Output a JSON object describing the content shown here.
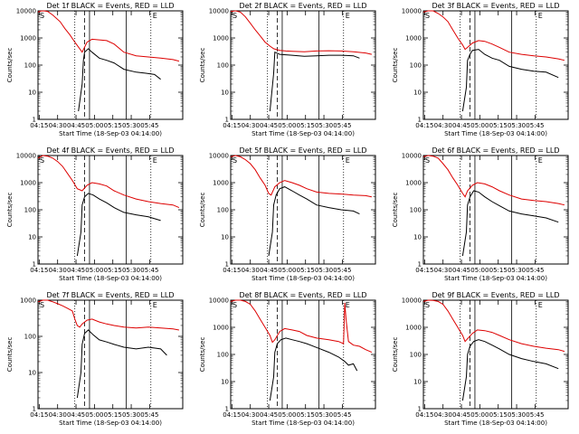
{
  "figure": {
    "x_axis_label": "Start Time (18-Sep-03 04:14:00)",
    "y_axis_label": "Counts/sec",
    "y_tick_labels": [
      "1",
      "10",
      "100",
      "1000",
      "10000"
    ],
    "x_tick_labels": [
      "04:15",
      "04:30",
      "04:45",
      "05:00",
      "05:15",
      "05:30",
      "05:45"
    ],
    "corner_marks": [
      "S",
      "E"
    ],
    "colors": {
      "events": "#000000",
      "lld": "#dd0000",
      "axes": "#000000"
    }
  },
  "chart_data": [
    {
      "type": "line",
      "title": "Det 1f BLACK = Events, RED = LLD",
      "xlabel": "Start Time (18-Sep-03 04:14:00)",
      "ylabel": "Counts/sec",
      "ylim": [
        1,
        10000
      ],
      "y_scale": "log",
      "x_range_minutes": [
        0,
        118
      ],
      "series": [
        {
          "name": "Events",
          "x": [
            33,
            36,
            37,
            38,
            41,
            44,
            50,
            56,
            62,
            70,
            80,
            88,
            95,
            100
          ],
          "y": [
            2,
            20,
            150,
            300,
            400,
            300,
            180,
            150,
            120,
            70,
            55,
            50,
            45,
            30
          ]
        },
        {
          "name": "LLD",
          "x": [
            0,
            2,
            5,
            8,
            12,
            18,
            22,
            26,
            30,
            34,
            36,
            40,
            44,
            50,
            56,
            62,
            70,
            80,
            90,
            100,
            110,
            115
          ],
          "y": [
            9000,
            9800,
            10000,
            9500,
            7000,
            4000,
            2200,
            1300,
            700,
            400,
            300,
            700,
            900,
            850,
            800,
            600,
            300,
            220,
            200,
            180,
            160,
            140
          ]
        }
      ]
    },
    {
      "type": "line",
      "title": "Det 2f BLACK = Events, RED = LLD",
      "xlabel": "Start Time (18-Sep-03 04:14:00)",
      "ylabel": "Counts/sec",
      "ylim": [
        1,
        10000
      ],
      "y_scale": "log",
      "x_range_minutes": [
        0,
        118
      ],
      "series": [
        {
          "name": "Events",
          "x": [
            32,
            35,
            36,
            40,
            45,
            50,
            60,
            70,
            80,
            90,
            100,
            105
          ],
          "y": [
            2,
            50,
            300,
            250,
            240,
            230,
            210,
            220,
            230,
            230,
            220,
            180
          ]
        },
        {
          "name": "LLD",
          "x": [
            0,
            4,
            8,
            12,
            16,
            20,
            24,
            28,
            32,
            35,
            40,
            45,
            50,
            60,
            70,
            80,
            90,
            100,
            110,
            115
          ],
          "y": [
            9500,
            10000,
            9000,
            6000,
            3500,
            2000,
            1200,
            700,
            500,
            400,
            350,
            330,
            320,
            310,
            330,
            340,
            330,
            310,
            280,
            250
          ]
        }
      ]
    },
    {
      "type": "line",
      "title": "Det 3f BLACK = Events, RED = LLD",
      "xlabel": "Start Time (18-Sep-03 04:14:00)",
      "ylabel": "Counts/sec",
      "ylim": [
        1,
        10000
      ],
      "y_scale": "log",
      "x_range_minutes": [
        0,
        118
      ],
      "series": [
        {
          "name": "Events",
          "x": [
            32,
            35,
            36,
            38,
            40,
            45,
            50,
            56,
            62,
            70,
            80,
            90,
            100,
            110
          ],
          "y": [
            2,
            15,
            150,
            250,
            350,
            380,
            250,
            180,
            150,
            90,
            70,
            60,
            55,
            35
          ]
        },
        {
          "name": "LLD",
          "x": [
            0,
            4,
            8,
            12,
            16,
            20,
            24,
            28,
            32,
            34,
            36,
            40,
            45,
            50,
            56,
            62,
            70,
            80,
            90,
            100,
            110,
            115
          ],
          "y": [
            9000,
            10000,
            10000,
            8000,
            6000,
            4000,
            2000,
            1000,
            550,
            380,
            450,
            650,
            800,
            750,
            600,
            450,
            300,
            250,
            220,
            200,
            170,
            150
          ]
        }
      ]
    },
    {
      "type": "line",
      "title": "Det 4f BLACK = Events, RED = LLD",
      "xlabel": "Start Time (18-Sep-03 04:14:00)",
      "ylabel": "Counts/sec",
      "ylim": [
        1,
        10000
      ],
      "y_scale": "log",
      "x_range_minutes": [
        0,
        118
      ],
      "series": [
        {
          "name": "Events",
          "x": [
            32,
            35,
            36,
            38,
            41,
            45,
            50,
            56,
            62,
            70,
            80,
            90,
            100
          ],
          "y": [
            2,
            15,
            150,
            300,
            400,
            350,
            250,
            180,
            120,
            80,
            65,
            55,
            40
          ]
        },
        {
          "name": "LLD",
          "x": [
            0,
            4,
            8,
            12,
            16,
            20,
            24,
            28,
            32,
            36,
            40,
            44,
            50,
            56,
            62,
            70,
            80,
            90,
            100,
            110,
            115
          ],
          "y": [
            8000,
            10000,
            9500,
            8000,
            6000,
            4000,
            2200,
            1200,
            600,
            500,
            800,
            1000,
            900,
            750,
            500,
            350,
            250,
            200,
            170,
            150,
            120
          ]
        }
      ]
    },
    {
      "type": "line",
      "title": "Det 5f BLACK = Events, RED = LLD",
      "xlabel": "Start Time (18-Sep-03 04:14:00)",
      "ylabel": "Counts/sec",
      "ylim": [
        1,
        10000
      ],
      "y_scale": "log",
      "x_range_minutes": [
        0,
        118
      ],
      "series": [
        {
          "name": "Events",
          "x": [
            31,
            34,
            35,
            37,
            40,
            44,
            50,
            56,
            62,
            70,
            80,
            90,
            100,
            105
          ],
          "y": [
            2,
            15,
            150,
            350,
            600,
            700,
            500,
            350,
            250,
            150,
            120,
            100,
            90,
            70
          ]
        },
        {
          "name": "LLD",
          "x": [
            0,
            4,
            8,
            12,
            16,
            20,
            24,
            28,
            31,
            33,
            36,
            40,
            44,
            50,
            56,
            62,
            70,
            80,
            90,
            100,
            110,
            115
          ],
          "y": [
            9000,
            10000,
            9000,
            7000,
            5000,
            3000,
            1500,
            800,
            400,
            350,
            700,
            1000,
            1200,
            1000,
            800,
            600,
            450,
            400,
            380,
            350,
            330,
            300
          ]
        }
      ]
    },
    {
      "type": "line",
      "title": "Det 6f BLACK = Events, RED = LLD",
      "xlabel": "Start Time (18-Sep-03 04:14:00)",
      "ylabel": "Counts/sec",
      "ylim": [
        1,
        10000
      ],
      "y_scale": "log",
      "x_range_minutes": [
        0,
        118
      ],
      "series": [
        {
          "name": "Events",
          "x": [
            32,
            35,
            36,
            38,
            41,
            45,
            50,
            56,
            62,
            70,
            80,
            90,
            100,
            110
          ],
          "y": [
            2,
            15,
            150,
            300,
            500,
            450,
            300,
            200,
            140,
            90,
            70,
            60,
            50,
            35
          ]
        },
        {
          "name": "LLD",
          "x": [
            0,
            4,
            8,
            12,
            16,
            20,
            24,
            28,
            32,
            34,
            36,
            40,
            44,
            50,
            56,
            62,
            70,
            80,
            90,
            100,
            110,
            115
          ],
          "y": [
            9000,
            10000,
            9500,
            8000,
            5000,
            3000,
            1500,
            800,
            400,
            300,
            500,
            800,
            1000,
            900,
            700,
            500,
            350,
            250,
            220,
            200,
            170,
            150
          ]
        }
      ]
    },
    {
      "type": "line",
      "title": "Det 7f BLACK = Events, RED = LLD",
      "xlabel": "Start Time (18-Sep-03 04:14:00)",
      "ylabel": "Counts/sec",
      "ylim": [
        1,
        1000
      ],
      "y_scale": "log",
      "x_range_minutes": [
        0,
        118
      ],
      "series": [
        {
          "name": "Events",
          "x": [
            32,
            35,
            36,
            38,
            41,
            45,
            50,
            56,
            62,
            70,
            80,
            90,
            100,
            105
          ],
          "y": [
            2,
            10,
            60,
            120,
            150,
            110,
            80,
            70,
            60,
            50,
            45,
            50,
            45,
            30
          ]
        },
        {
          "name": "LLD",
          "x": [
            0,
            4,
            8,
            12,
            16,
            20,
            24,
            28,
            30,
            32,
            34,
            36,
            40,
            44,
            50,
            56,
            62,
            70,
            80,
            90,
            100,
            110,
            115
          ],
          "y": [
            900,
            1000,
            1000,
            900,
            800,
            700,
            600,
            500,
            300,
            200,
            180,
            220,
            280,
            300,
            250,
            220,
            200,
            180,
            170,
            180,
            170,
            160,
            150
          ]
        }
      ]
    },
    {
      "type": "line",
      "title": "Det 8f BLACK = Events, RED = LLD",
      "xlabel": "Start Time (18-Sep-03 04:14:00)",
      "ylabel": "Counts/sec",
      "ylim": [
        1,
        10000
      ],
      "y_scale": "log",
      "x_range_minutes": [
        0,
        118
      ],
      "series": [
        {
          "name": "Events",
          "x": [
            32,
            35,
            36,
            38,
            41,
            45,
            50,
            56,
            62,
            70,
            80,
            88,
            93,
            96,
            100,
            103
          ],
          "y": [
            2,
            15,
            120,
            250,
            350,
            400,
            350,
            300,
            250,
            180,
            120,
            80,
            55,
            40,
            45,
            25
          ]
        },
        {
          "name": "LLD",
          "x": [
            0,
            4,
            8,
            12,
            16,
            20,
            24,
            28,
            32,
            34,
            36,
            40,
            44,
            50,
            56,
            62,
            70,
            80,
            88,
            92,
            93,
            94,
            96,
            100,
            105,
            110,
            115
          ],
          "y": [
            9000,
            10000,
            10000,
            9000,
            7000,
            4000,
            2000,
            1000,
            500,
            280,
            350,
            700,
            900,
            800,
            700,
            500,
            400,
            350,
            300,
            250,
            8000,
            2000,
            300,
            220,
            200,
            150,
            120
          ]
        }
      ]
    },
    {
      "type": "line",
      "title": "Det 9f BLACK = Events, RED = LLD",
      "xlabel": "Start Time (18-Sep-03 04:14:00)",
      "ylabel": "Counts/sec",
      "ylim": [
        1,
        10000
      ],
      "y_scale": "log",
      "x_range_minutes": [
        0,
        118
      ],
      "series": [
        {
          "name": "Events",
          "x": [
            32,
            35,
            36,
            38,
            41,
            45,
            50,
            56,
            62,
            70,
            80,
            90,
            100,
            110
          ],
          "y": [
            2,
            15,
            100,
            200,
            300,
            350,
            300,
            220,
            160,
            100,
            70,
            55,
            45,
            30
          ]
        },
        {
          "name": "LLD",
          "x": [
            0,
            4,
            8,
            12,
            16,
            20,
            24,
            28,
            32,
            34,
            36,
            40,
            44,
            50,
            56,
            62,
            70,
            80,
            90,
            100,
            110,
            115
          ],
          "y": [
            9000,
            10000,
            9800,
            9000,
            7000,
            4000,
            2000,
            1000,
            500,
            300,
            380,
            600,
            800,
            750,
            650,
            500,
            350,
            250,
            200,
            170,
            150,
            130
          ]
        }
      ]
    }
  ]
}
